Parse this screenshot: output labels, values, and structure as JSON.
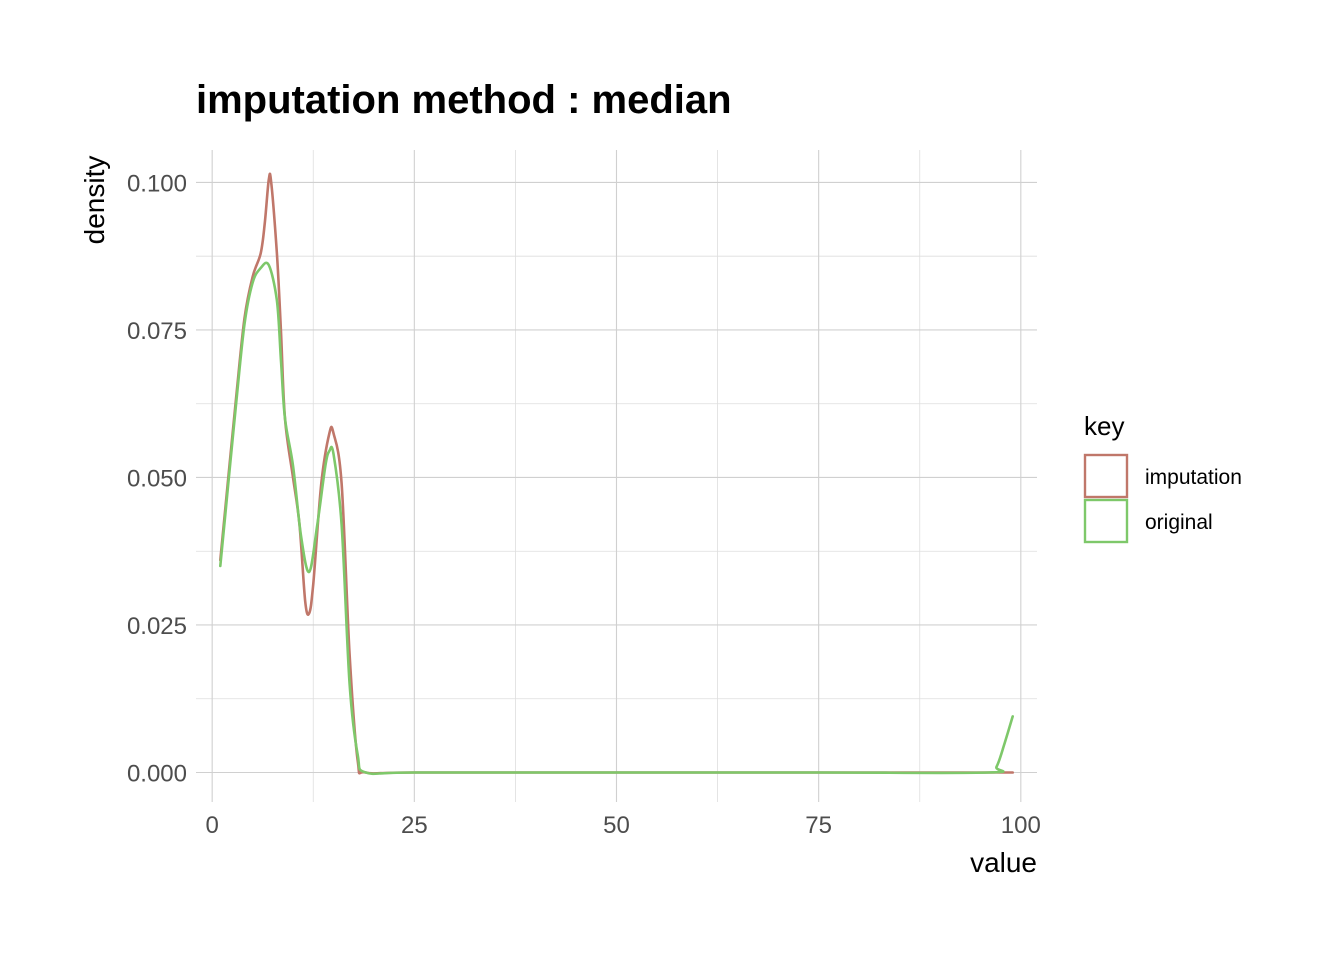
{
  "chart_data": {
    "type": "line",
    "title": "imputation method : median",
    "xlabel": "value",
    "ylabel": "density",
    "xlim": [
      -2,
      102
    ],
    "ylim": [
      -0.005,
      0.1055
    ],
    "x_ticks": [
      0,
      25,
      50,
      75,
      100
    ],
    "x_tick_labels": [
      "0",
      "25",
      "50",
      "75",
      "100"
    ],
    "y_ticks": [
      0,
      0.025,
      0.05,
      0.075,
      0.1
    ],
    "y_tick_labels": [
      "0.000",
      "0.025",
      "0.050",
      "0.075",
      "0.100"
    ],
    "grid": true,
    "legend": {
      "title": "key",
      "position": "right"
    },
    "series": [
      {
        "name": "imputation",
        "color": "#c0776a",
        "points": [
          [
            1,
            0.036
          ],
          [
            2,
            0.05
          ],
          [
            3,
            0.064
          ],
          [
            4,
            0.077
          ],
          [
            5,
            0.084
          ],
          [
            6,
            0.088
          ],
          [
            6.5,
            0.093
          ],
          [
            7,
            0.1005
          ],
          [
            7.3,
            0.1
          ],
          [
            8,
            0.088
          ],
          [
            8.5,
            0.075
          ],
          [
            9,
            0.06
          ],
          [
            10,
            0.05
          ],
          [
            10.8,
            0.042
          ],
          [
            11.5,
            0.029
          ],
          [
            12,
            0.027
          ],
          [
            12.5,
            0.032
          ],
          [
            13.5,
            0.049
          ],
          [
            14.5,
            0.0575
          ],
          [
            15,
            0.0575
          ],
          [
            16,
            0.049
          ],
          [
            17,
            0.02
          ],
          [
            18,
            0.002
          ],
          [
            19,
            0.0
          ],
          [
            25,
            0.0
          ],
          [
            50,
            0.0
          ],
          [
            75,
            0.0
          ],
          [
            96,
            0.0
          ],
          [
            99,
            0.0
          ]
        ]
      },
      {
        "name": "original",
        "color": "#7ec86a",
        "points": [
          [
            1,
            0.035
          ],
          [
            2,
            0.049
          ],
          [
            3,
            0.063
          ],
          [
            4,
            0.076
          ],
          [
            5,
            0.083
          ],
          [
            6,
            0.0855
          ],
          [
            7,
            0.086
          ],
          [
            8,
            0.08
          ],
          [
            8.5,
            0.07
          ],
          [
            9,
            0.06
          ],
          [
            10,
            0.052
          ],
          [
            11,
            0.04
          ],
          [
            12,
            0.034
          ],
          [
            13,
            0.042
          ],
          [
            14,
            0.052
          ],
          [
            14.5,
            0.0545
          ],
          [
            15,
            0.054
          ],
          [
            16,
            0.042
          ],
          [
            17,
            0.015
          ],
          [
            18,
            0.003
          ],
          [
            19,
            0.0
          ],
          [
            25,
            0.0
          ],
          [
            50,
            0.0
          ],
          [
            75,
            0.0
          ],
          [
            96,
            0.0
          ],
          [
            97,
            0.001
          ],
          [
            98,
            0.005
          ],
          [
            99,
            0.0095
          ]
        ]
      }
    ]
  }
}
